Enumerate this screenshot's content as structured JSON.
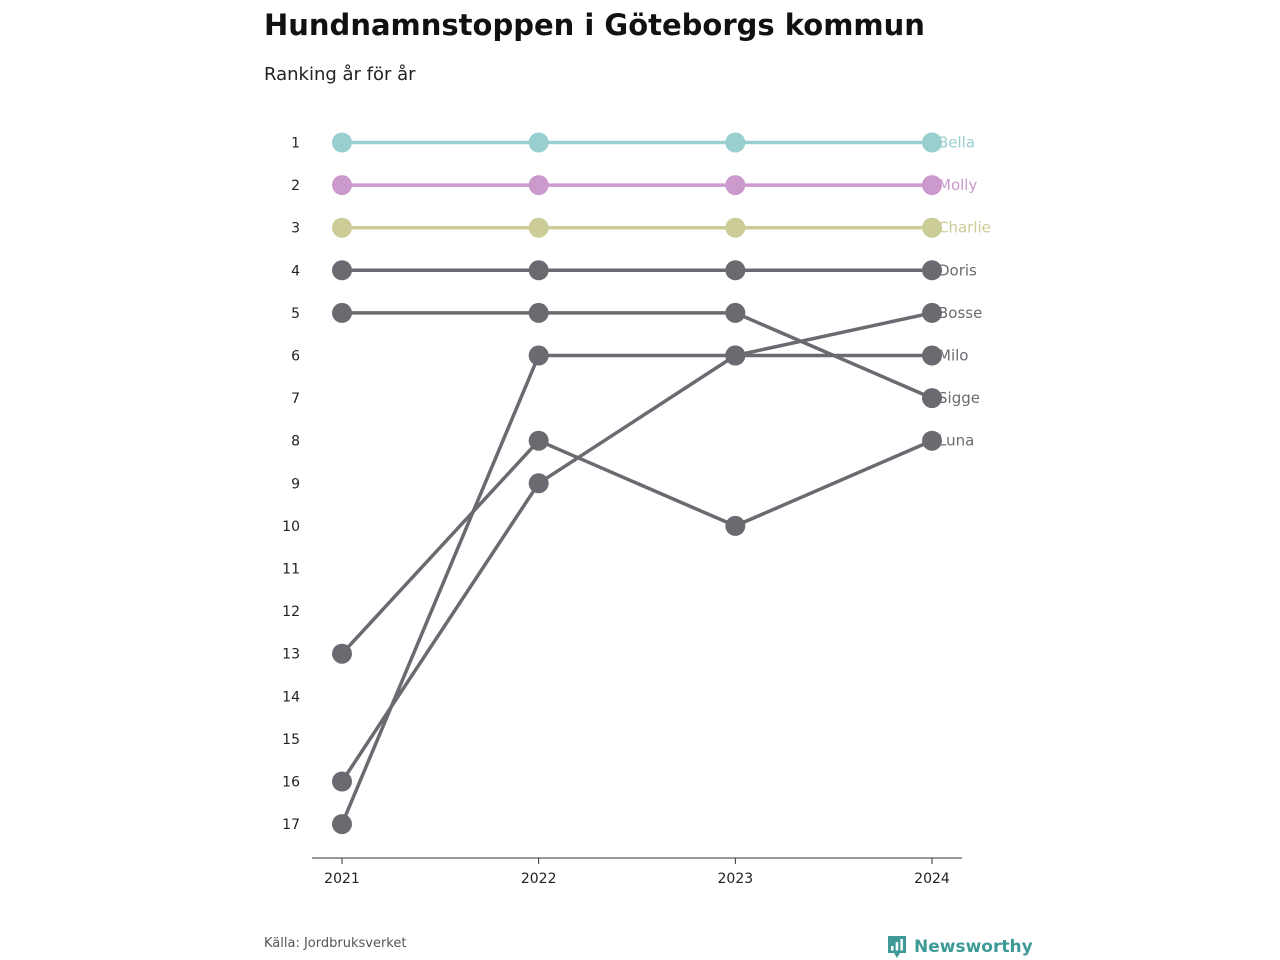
{
  "title": "Hundnamnstoppen i Göteborgs kommun",
  "subtitle": "Ranking år för år",
  "source": "Källa: Jordbruksverket",
  "brand": {
    "name": "Newsworthy",
    "color": "#3d9a96",
    "icon": "bar-chart-pin-icon"
  },
  "chart_data": {
    "type": "line",
    "x": [
      "2021",
      "2022",
      "2023",
      "2024"
    ],
    "y_axis": {
      "ticks": [
        1,
        2,
        3,
        4,
        5,
        6,
        7,
        8,
        9,
        10,
        11,
        12,
        13,
        14,
        15,
        16,
        17
      ],
      "range": [
        1,
        17
      ],
      "inverted": true
    },
    "grid": false,
    "series": [
      {
        "name": "Bella",
        "values": [
          1,
          1,
          1,
          1
        ],
        "color": "#99cfcf"
      },
      {
        "name": "Molly",
        "values": [
          2,
          2,
          2,
          2
        ],
        "color": "#cc99cc"
      },
      {
        "name": "Charlie",
        "values": [
          3,
          3,
          3,
          3
        ],
        "color": "#cccc99"
      },
      {
        "name": "Doris",
        "values": [
          4,
          4,
          4,
          4
        ],
        "color": "#6b6a70"
      },
      {
        "name": "Bosse",
        "values": [
          16,
          9,
          6,
          5
        ],
        "color": "#6b6a70"
      },
      {
        "name": "Milo",
        "values": [
          17,
          6,
          6,
          6
        ],
        "color": "#6b6a70"
      },
      {
        "name": "Sigge",
        "values": [
          5,
          5,
          5,
          7
        ],
        "color": "#6b6a70"
      },
      {
        "name": "Luna",
        "values": [
          13,
          8,
          10,
          8
        ],
        "color": "#6b6a70"
      }
    ]
  }
}
